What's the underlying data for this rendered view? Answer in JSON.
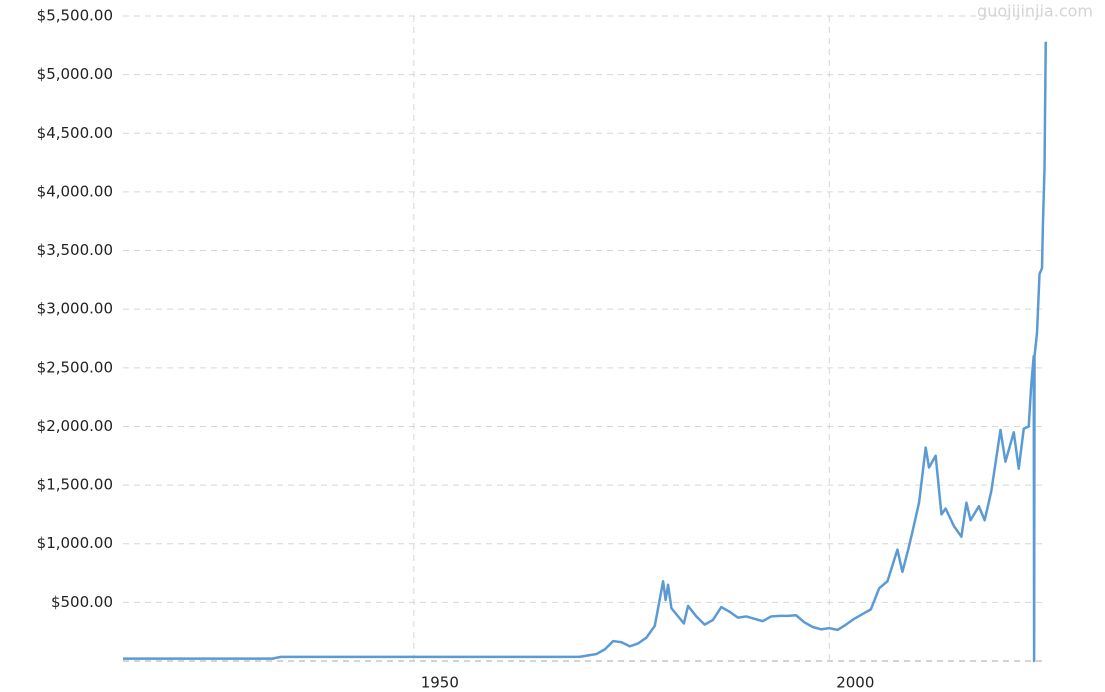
{
  "chart_data": {
    "type": "line",
    "watermark": "guojijinjia.com",
    "xlim": [
      1915,
      2026.2
    ],
    "xticks": [
      1950,
      2000
    ],
    "ylim": [
      0,
      5500
    ],
    "yticks": [
      {
        "value": 500,
        "label": "$500.00"
      },
      {
        "value": 1000,
        "label": "$1,000.00"
      },
      {
        "value": 1500,
        "label": "$1,500.00"
      },
      {
        "value": 2000,
        "label": "$2,000.00"
      },
      {
        "value": 2500,
        "label": "$2,500.00"
      },
      {
        "value": 3000,
        "label": "$3,000.00"
      },
      {
        "value": 3500,
        "label": "$3,500.00"
      },
      {
        "value": 4000,
        "label": "$4,000.00"
      },
      {
        "value": 4500,
        "label": "$4,500.00"
      },
      {
        "value": 5000,
        "label": "$5,000.00"
      },
      {
        "value": 5500,
        "label": "$5,500.00"
      }
    ],
    "grid": true,
    "series": [
      {
        "color": "#5b9bd5",
        "x": [
          1915,
          1933,
          1934,
          1968,
          1970,
          1972,
          1973,
          1974,
          1975,
          1976,
          1977,
          1978,
          1979,
          1980.0,
          1980.3,
          1980.6,
          1981,
          1982.5,
          1983,
          1984,
          1985,
          1986,
          1987,
          1988,
          1989,
          1990,
          1991,
          1992,
          1993,
          1994,
          1995,
          1996,
          1997,
          1998,
          1999,
          2000,
          2001,
          2002,
          2003,
          2004,
          2005,
          2006,
          2007,
          2008.2,
          2008.8,
          2009.5,
          2010,
          2010.8,
          2011.6,
          2012,
          2012.8,
          2013.5,
          2014,
          2015,
          2015.9,
          2016.5,
          2017,
          2018,
          2018.7,
          2019.5,
          2020.6,
          2021.2,
          2022.2,
          2022.8,
          2023.4,
          2024,
          2024.3,
          2024.6,
          2024.65,
          2024.7,
          2025,
          2025.3,
          2025.6,
          2025.7,
          2025.9,
          2026.05
        ],
        "values": [
          20,
          20,
          35,
          35,
          36,
          60,
          100,
          170,
          160,
          125,
          150,
          200,
          300,
          680,
          520,
          650,
          450,
          320,
          470,
          380,
          310,
          350,
          460,
          420,
          370,
          380,
          360,
          340,
          380,
          385,
          385,
          390,
          330,
          290,
          270,
          280,
          265,
          310,
          360,
          400,
          440,
          620,
          680,
          950,
          760,
          950,
          1100,
          1350,
          1820,
          1650,
          1750,
          1250,
          1300,
          1150,
          1060,
          1350,
          1200,
          1320,
          1200,
          1450,
          1970,
          1700,
          1950,
          1640,
          1980,
          2000,
          2350,
          2600,
          0,
          2600,
          2800,
          3300,
          3350,
          3700,
          4200,
          5280
        ]
      }
    ]
  }
}
